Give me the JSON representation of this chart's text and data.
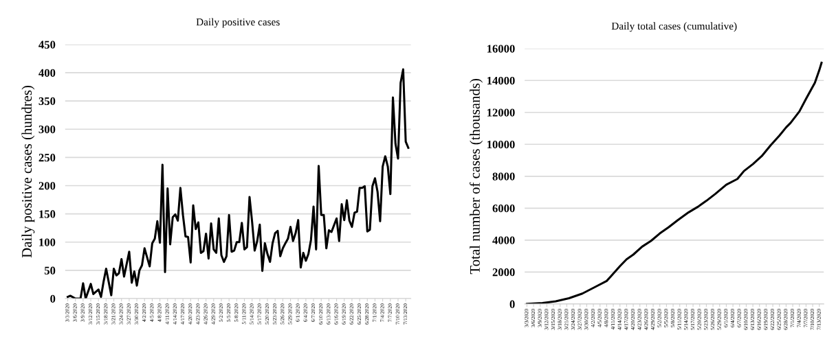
{
  "chart_data": [
    {
      "type": "line",
      "title": "Daily positive cases",
      "ylabel": "Daily positive cases (hundres)",
      "color": "#000000",
      "line_style": "solid",
      "grid": "y",
      "x": [
        "2020-03-03",
        "2020-03-04",
        "2020-03-06",
        "2020-03-08",
        "2020-03-09",
        "2020-03-10",
        "2020-03-12",
        "2020-03-13",
        "2020-03-15",
        "2020-03-16",
        "2020-03-17",
        "2020-03-18",
        "2020-03-20",
        "2020-03-21",
        "2020-03-22",
        "2020-03-23",
        "2020-03-24",
        "2020-03-25",
        "2020-03-27",
        "2020-03-28",
        "2020-03-29",
        "2020-03-30",
        "2020-03-31",
        "2020-04-01",
        "2020-04-02",
        "2020-04-04",
        "2020-04-05",
        "2020-04-06",
        "2020-04-07",
        "2020-04-08",
        "2020-04-09",
        "2020-04-10",
        "2020-04-11",
        "2020-04-12",
        "2020-04-13",
        "2020-04-14",
        "2020-04-15",
        "2020-04-16",
        "2020-04-17",
        "2020-04-18",
        "2020-04-19",
        "2020-04-20",
        "2020-04-21",
        "2020-04-22",
        "2020-04-23",
        "2020-04-24",
        "2020-04-25",
        "2020-04-26",
        "2020-04-27",
        "2020-04-28",
        "2020-04-29",
        "2020-04-30",
        "2020-05-01",
        "2020-05-02",
        "2020-05-03",
        "2020-05-04",
        "2020-05-05",
        "2020-05-06",
        "2020-05-07",
        "2020-05-08",
        "2020-05-09",
        "2020-05-10",
        "2020-05-11",
        "2020-05-12",
        "2020-05-13",
        "2020-05-14",
        "2020-05-15",
        "2020-05-16",
        "2020-05-17",
        "2020-05-18",
        "2020-05-19",
        "2020-05-20",
        "2020-05-21",
        "2020-05-22",
        "2020-05-23",
        "2020-05-24",
        "2020-05-25",
        "2020-05-26",
        "2020-05-27",
        "2020-05-28",
        "2020-05-29",
        "2020-05-30",
        "2020-05-31",
        "2020-06-01",
        "2020-06-02",
        "2020-06-03",
        "2020-06-04",
        "2020-06-05",
        "2020-06-06",
        "2020-06-07",
        "2020-06-08",
        "2020-06-09",
        "2020-06-10",
        "2020-06-11",
        "2020-06-12",
        "2020-06-13",
        "2020-06-14",
        "2020-06-16",
        "2020-06-17",
        "2020-06-18",
        "2020-06-19",
        "2020-06-20",
        "2020-06-21",
        "2020-06-22",
        "2020-06-23",
        "2020-06-24",
        "2020-06-25",
        "2020-06-26",
        "2020-06-27",
        "2020-06-28",
        "2020-06-29",
        "2020-06-30",
        "2020-07-01",
        "2020-07-02",
        "2020-07-03",
        "2020-07-04",
        "2020-07-05",
        "2020-07-06",
        "2020-07-07",
        "2020-07-08",
        "2020-07-09",
        "2020-07-10",
        "2020-07-11",
        "2020-07-12",
        "2020-07-13",
        "2020-07-14"
      ],
      "values": [
        3,
        5,
        0,
        0,
        27,
        0,
        26,
        8,
        16,
        3,
        30,
        53,
        6,
        53,
        41,
        45,
        70,
        39,
        83,
        28,
        48,
        23,
        50,
        59,
        89,
        57,
        98,
        106,
        137,
        99,
        237,
        47,
        195,
        96,
        144,
        149,
        138,
        196,
        148,
        110,
        109,
        64,
        165,
        123,
        135,
        81,
        84,
        115,
        71,
        133,
        87,
        81,
        142,
        77,
        65,
        75,
        148,
        83,
        85,
        100,
        100,
        134,
        87,
        91,
        180,
        136,
        85,
        102,
        131,
        49,
        98,
        79,
        65,
        98,
        116,
        120,
        75,
        89,
        98,
        106,
        127,
        102,
        116,
        139,
        55,
        81,
        67,
        79,
        104,
        163,
        87,
        235,
        148,
        148,
        89,
        121,
        118,
        142,
        102,
        167,
        139,
        174,
        138,
        127,
        152,
        154,
        196,
        196,
        199,
        119,
        122,
        199,
        213,
        189,
        137,
        234,
        252,
        234,
        185,
        356,
        274,
        248,
        382,
        406,
        278,
        267
      ],
      "xlim": [
        "2020-03-02",
        "2020-07-15"
      ],
      "ylim": [
        0,
        450
      ],
      "yticks": [
        0,
        50,
        100,
        150,
        200,
        250,
        300,
        350,
        400,
        450
      ],
      "xticks": [
        {
          "value": "2020-03-03",
          "label": "3/3/2020"
        },
        {
          "value": "2020-03-06",
          "label": "3/6/2020"
        },
        {
          "value": "2020-03-09",
          "label": "3/9/2020"
        },
        {
          "value": "2020-03-12",
          "label": "3/12/2020"
        },
        {
          "value": "2020-03-15",
          "label": "3/15/2020"
        },
        {
          "value": "2020-03-18",
          "label": "3/18/2020"
        },
        {
          "value": "2020-03-21",
          "label": "3/21/2020"
        },
        {
          "value": "2020-03-24",
          "label": "3/24/2020"
        },
        {
          "value": "2020-03-27",
          "label": "3/27/2020"
        },
        {
          "value": "2020-03-30",
          "label": "3/30/2020"
        },
        {
          "value": "2020-04-02",
          "label": "4/2/2020"
        },
        {
          "value": "2020-04-05",
          "label": "4/5/2020"
        },
        {
          "value": "2020-04-08",
          "label": "4/8/2020"
        },
        {
          "value": "2020-04-11",
          "label": "4/11/2020"
        },
        {
          "value": "2020-04-14",
          "label": "4/14/2020"
        },
        {
          "value": "2020-04-17",
          "label": "4/17/2020"
        },
        {
          "value": "2020-04-20",
          "label": "4/20/2020"
        },
        {
          "value": "2020-04-23",
          "label": "4/23/2020"
        },
        {
          "value": "2020-04-26",
          "label": "4/26/2020"
        },
        {
          "value": "2020-04-29",
          "label": "4/29/2020"
        },
        {
          "value": "2020-05-02",
          "label": "5/2/2020"
        },
        {
          "value": "2020-05-05",
          "label": "5/5/2020"
        },
        {
          "value": "2020-05-08",
          "label": "5/8/2020"
        },
        {
          "value": "2020-05-11",
          "label": "5/11/2020"
        },
        {
          "value": "2020-05-14",
          "label": "5/14/2020"
        },
        {
          "value": "2020-05-17",
          "label": "5/17/2020"
        },
        {
          "value": "2020-05-20",
          "label": "5/20/2020"
        },
        {
          "value": "2020-05-23",
          "label": "5/23/2020"
        },
        {
          "value": "2020-05-26",
          "label": "5/26/2020"
        },
        {
          "value": "2020-05-29",
          "label": "5/29/2020"
        },
        {
          "value": "2020-06-01",
          "label": "6/1/2020"
        },
        {
          "value": "2020-06-04",
          "label": "6/4/2020"
        },
        {
          "value": "2020-06-07",
          "label": "6/7/2020"
        },
        {
          "value": "2020-06-10",
          "label": "6/10/2020"
        },
        {
          "value": "2020-06-13",
          "label": "6/13/2020"
        },
        {
          "value": "2020-06-16",
          "label": "6/16/2020"
        },
        {
          "value": "2020-06-19",
          "label": "6/19/2020"
        },
        {
          "value": "2020-06-22",
          "label": "6/22/2020"
        },
        {
          "value": "2020-06-25",
          "label": "6/25/2020"
        },
        {
          "value": "2020-06-28",
          "label": "6/28/2020"
        },
        {
          "value": "2020-07-01",
          "label": "7/1/2020"
        },
        {
          "value": "2020-07-04",
          "label": "7/4/2020"
        },
        {
          "value": "2020-07-07",
          "label": "7/7/2020"
        },
        {
          "value": "2020-07-10",
          "label": "7/10/2020"
        },
        {
          "value": "2020-07-13",
          "label": "7/13/2020"
        }
      ]
    },
    {
      "type": "line",
      "title": "Daily total cases (cumulative)",
      "ylabel": "Total number of cases (thousands)",
      "color": "#000000",
      "line_style": "solid",
      "grid": "y",
      "x": [
        "2020-03-03",
        "2020-03-10",
        "2020-03-16",
        "2020-03-22",
        "2020-03-28",
        "2020-04-03",
        "2020-04-08",
        "2020-04-10",
        "2020-04-14",
        "2020-04-17",
        "2020-04-20",
        "2020-04-24",
        "2020-04-28",
        "2020-05-02",
        "2020-05-06",
        "2020-05-10",
        "2020-05-15",
        "2020-05-19",
        "2020-05-23",
        "2020-05-27",
        "2020-06-01",
        "2020-06-06",
        "2020-06-09",
        "2020-06-13",
        "2020-06-17",
        "2020-06-21",
        "2020-06-25",
        "2020-06-28",
        "2020-06-30",
        "2020-07-04",
        "2020-07-07",
        "2020-07-11",
        "2020-07-13",
        "2020-07-14"
      ],
      "values": [
        0,
        60,
        170,
        360,
        650,
        1080,
        1440,
        1750,
        2370,
        2800,
        3090,
        3590,
        3950,
        4420,
        4810,
        5240,
        5740,
        6070,
        6460,
        6890,
        7470,
        7830,
        8330,
        8760,
        9260,
        9940,
        10550,
        11060,
        11340,
        12060,
        12850,
        13860,
        14650,
        15110
      ],
      "xlim": [
        "2020-03-02",
        "2020-07-15"
      ],
      "ylim": [
        0,
        16000
      ],
      "yticks": [
        0,
        2000,
        4000,
        6000,
        8000,
        10000,
        12000,
        14000,
        16000
      ],
      "xticks": [
        {
          "value": "2020-03-03",
          "label": "3/3/2020"
        },
        {
          "value": "2020-03-06",
          "label": "3/6/2020"
        },
        {
          "value": "2020-03-09",
          "label": "3/9/2020"
        },
        {
          "value": "2020-03-12",
          "label": "3/12/2020"
        },
        {
          "value": "2020-03-15",
          "label": "3/15/2020"
        },
        {
          "value": "2020-03-18",
          "label": "3/18/2020"
        },
        {
          "value": "2020-03-21",
          "label": "3/21/2020"
        },
        {
          "value": "2020-03-24",
          "label": "3/24/2020"
        },
        {
          "value": "2020-03-27",
          "label": "3/27/2020"
        },
        {
          "value": "2020-03-30",
          "label": "3/30/2020"
        },
        {
          "value": "2020-04-02",
          "label": "4/2/2020"
        },
        {
          "value": "2020-04-05",
          "label": "4/5/2020"
        },
        {
          "value": "2020-04-08",
          "label": "4/8/2020"
        },
        {
          "value": "2020-04-11",
          "label": "4/11/2020"
        },
        {
          "value": "2020-04-14",
          "label": "4/14/2020"
        },
        {
          "value": "2020-04-17",
          "label": "4/17/2020"
        },
        {
          "value": "2020-04-20",
          "label": "4/20/2020"
        },
        {
          "value": "2020-04-23",
          "label": "4/23/2020"
        },
        {
          "value": "2020-04-26",
          "label": "4/26/2020"
        },
        {
          "value": "2020-04-29",
          "label": "4/29/2020"
        },
        {
          "value": "2020-05-02",
          "label": "5/2/2020"
        },
        {
          "value": "2020-05-05",
          "label": "5/5/2020"
        },
        {
          "value": "2020-05-08",
          "label": "5/8/2020"
        },
        {
          "value": "2020-05-11",
          "label": "5/11/2020"
        },
        {
          "value": "2020-05-14",
          "label": "5/14/2020"
        },
        {
          "value": "2020-05-17",
          "label": "5/17/2020"
        },
        {
          "value": "2020-05-20",
          "label": "5/20/2020"
        },
        {
          "value": "2020-05-23",
          "label": "5/23/2020"
        },
        {
          "value": "2020-05-26",
          "label": "5/26/2020"
        },
        {
          "value": "2020-05-29",
          "label": "5/29/2020"
        },
        {
          "value": "2020-06-01",
          "label": "6/1/2020"
        },
        {
          "value": "2020-06-04",
          "label": "6/4/2020"
        },
        {
          "value": "2020-06-07",
          "label": "6/7/2020"
        },
        {
          "value": "2020-06-10",
          "label": "6/10/2020"
        },
        {
          "value": "2020-06-13",
          "label": "6/13/2020"
        },
        {
          "value": "2020-06-16",
          "label": "6/16/2020"
        },
        {
          "value": "2020-06-19",
          "label": "6/19/2020"
        },
        {
          "value": "2020-06-22",
          "label": "6/22/2020"
        },
        {
          "value": "2020-06-25",
          "label": "6/25/2020"
        },
        {
          "value": "2020-06-28",
          "label": "6/28/2020"
        },
        {
          "value": "2020-07-01",
          "label": "7/1/2020"
        },
        {
          "value": "2020-07-04",
          "label": "7/4/2020"
        },
        {
          "value": "2020-07-07",
          "label": "7/7/2020"
        },
        {
          "value": "2020-07-10",
          "label": "7/10/2020"
        },
        {
          "value": "2020-07-13",
          "label": "7/13/2020"
        }
      ]
    }
  ]
}
